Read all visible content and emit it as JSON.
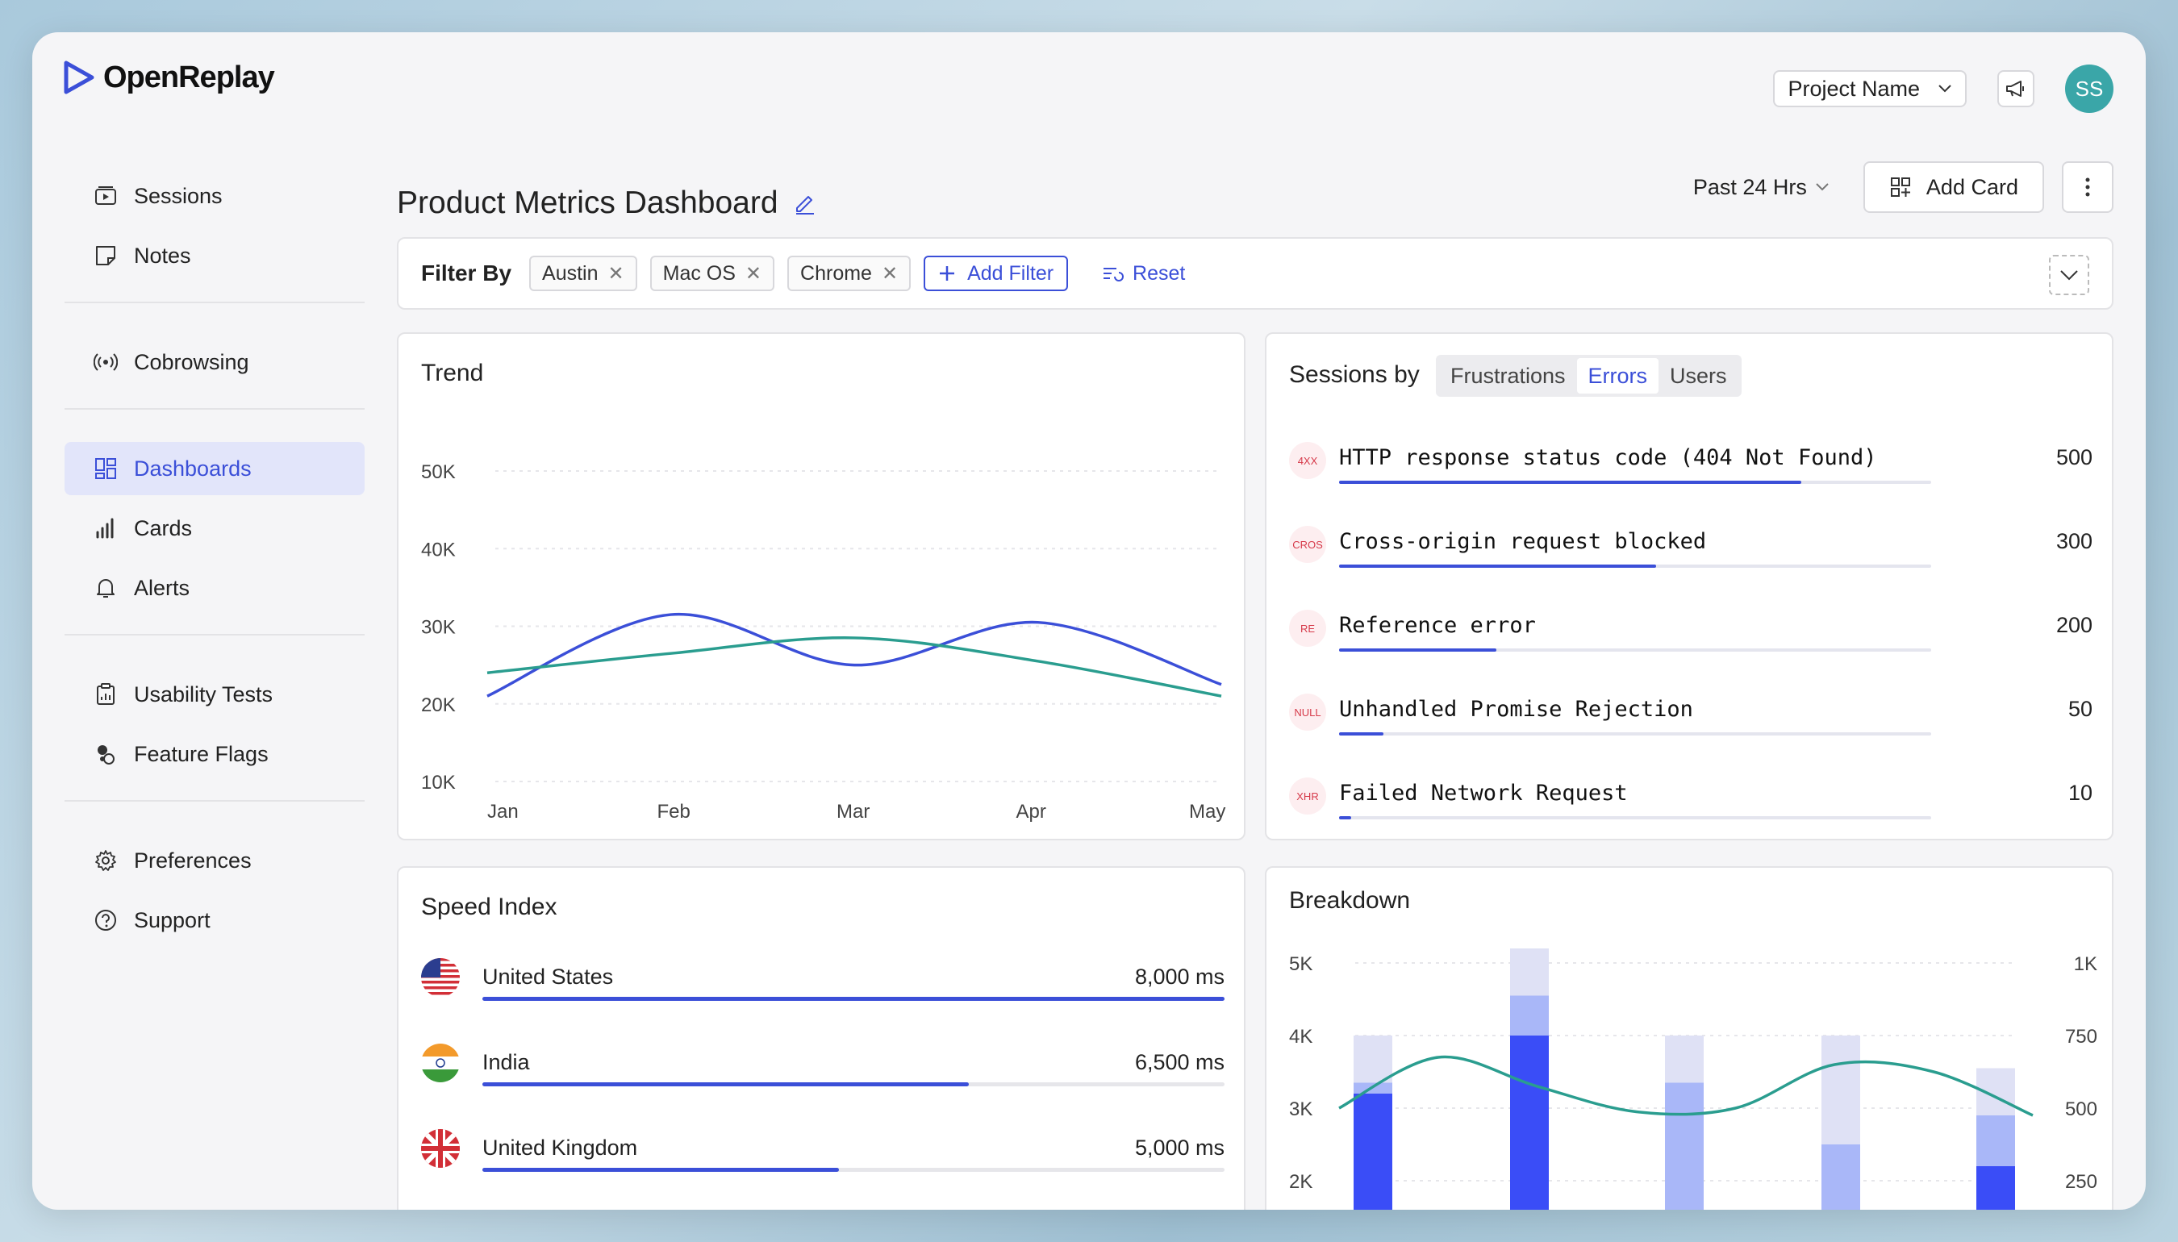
{
  "app": {
    "name": "OpenReplay"
  },
  "header": {
    "project": "Project Name",
    "avatar_initials": "SS"
  },
  "sidebar": {
    "groups": [
      [
        {
          "label": "Sessions",
          "icon": "play-icon"
        },
        {
          "label": "Notes",
          "icon": "note-icon"
        }
      ],
      [
        {
          "label": "Cobrowsing",
          "icon": "broadcast-icon"
        }
      ],
      [
        {
          "label": "Dashboards",
          "icon": "grid-icon",
          "active": true
        },
        {
          "label": "Cards",
          "icon": "bar-chart-icon"
        },
        {
          "label": "Alerts",
          "icon": "bell-icon"
        }
      ],
      [
        {
          "label": "Usability Tests",
          "icon": "clipboard-icon"
        },
        {
          "label": "Feature Flags",
          "icon": "toggle-icon"
        }
      ],
      [
        {
          "label": "Preferences",
          "icon": "gear-icon"
        },
        {
          "label": "Support",
          "icon": "help-icon"
        }
      ]
    ]
  },
  "dashboard": {
    "title": "Product Metrics Dashboard",
    "time_range": "Past 24 Hrs",
    "add_card_label": "Add Card"
  },
  "filters": {
    "label": "Filter By",
    "chips": [
      "Austin",
      "Mac OS",
      "Chrome"
    ],
    "add_label": "Add Filter",
    "reset_label": "Reset"
  },
  "trend": {
    "title": "Trend",
    "chart_data": {
      "type": "line",
      "x": [
        "Jan",
        "Feb",
        "Mar",
        "Apr",
        "May"
      ],
      "y_ticks": [
        "50K",
        "40K",
        "30K",
        "20K",
        "10K"
      ],
      "ylim": [
        10000,
        50000
      ],
      "series": [
        {
          "color": "#3b4fd8",
          "values": [
            21000,
            31500,
            25000,
            30500,
            22500
          ]
        },
        {
          "color": "#2a9d8f",
          "values": [
            24000,
            26500,
            28500,
            25500,
            21000
          ]
        }
      ]
    }
  },
  "sessions_by": {
    "title": "Sessions by",
    "tabs": [
      "Frustrations",
      "Errors",
      "Users"
    ],
    "active_tab": 1,
    "rows": [
      {
        "badge": "4XX",
        "name": "HTTP response status code (404 Not Found)",
        "value": "500",
        "fraction": 0.78
      },
      {
        "badge": "CROS",
        "name": "Cross-origin request blocked",
        "value": "300",
        "fraction": 0.535
      },
      {
        "badge": "RE",
        "name": "Reference error",
        "value": "200",
        "fraction": 0.265
      },
      {
        "badge": "NULL",
        "name": "Unhandled Promise Rejection",
        "value": "50",
        "fraction": 0.075
      },
      {
        "badge": "XHR",
        "name": "Failed Network Request",
        "value": "10",
        "fraction": 0.02
      }
    ]
  },
  "speed_index": {
    "title": "Speed Index",
    "rows": [
      {
        "country": "United States",
        "value": "8,000 ms",
        "fraction": 1.0,
        "flag": "us-flag-icon"
      },
      {
        "country": "India",
        "value": "6,500 ms",
        "fraction": 0.655,
        "flag": "india-flag-icon"
      },
      {
        "country": "United Kingdom",
        "value": "5,000 ms",
        "fraction": 0.48,
        "flag": "uk-flag-icon"
      }
    ]
  },
  "breakdown": {
    "title": "Breakdown",
    "chart_data": {
      "type": "bar",
      "y_left_ticks": [
        "5K",
        "4K",
        "3K",
        "2K"
      ],
      "y_right_ticks": [
        "1K",
        "750",
        "500",
        "250"
      ],
      "bars": [
        {
          "light": 4000,
          "mid": 3350,
          "dark": 3200
        },
        {
          "light": 5200,
          "mid": 4550,
          "dark": 4000
        },
        {
          "light": 4000,
          "mid": 3350,
          "dark": 0
        },
        {
          "light": 4000,
          "mid": 2500,
          "dark": 0
        },
        {
          "light": 3550,
          "mid": 2900,
          "dark": 2200
        }
      ],
      "line": [
        3000,
        3700,
        3300,
        2950,
        3000,
        3600,
        3500,
        2900
      ],
      "colors": {
        "light": "#dfe1f5",
        "mid": "#a9b7f8",
        "dark": "#3a4df7",
        "line": "#2a9d8f"
      }
    }
  }
}
